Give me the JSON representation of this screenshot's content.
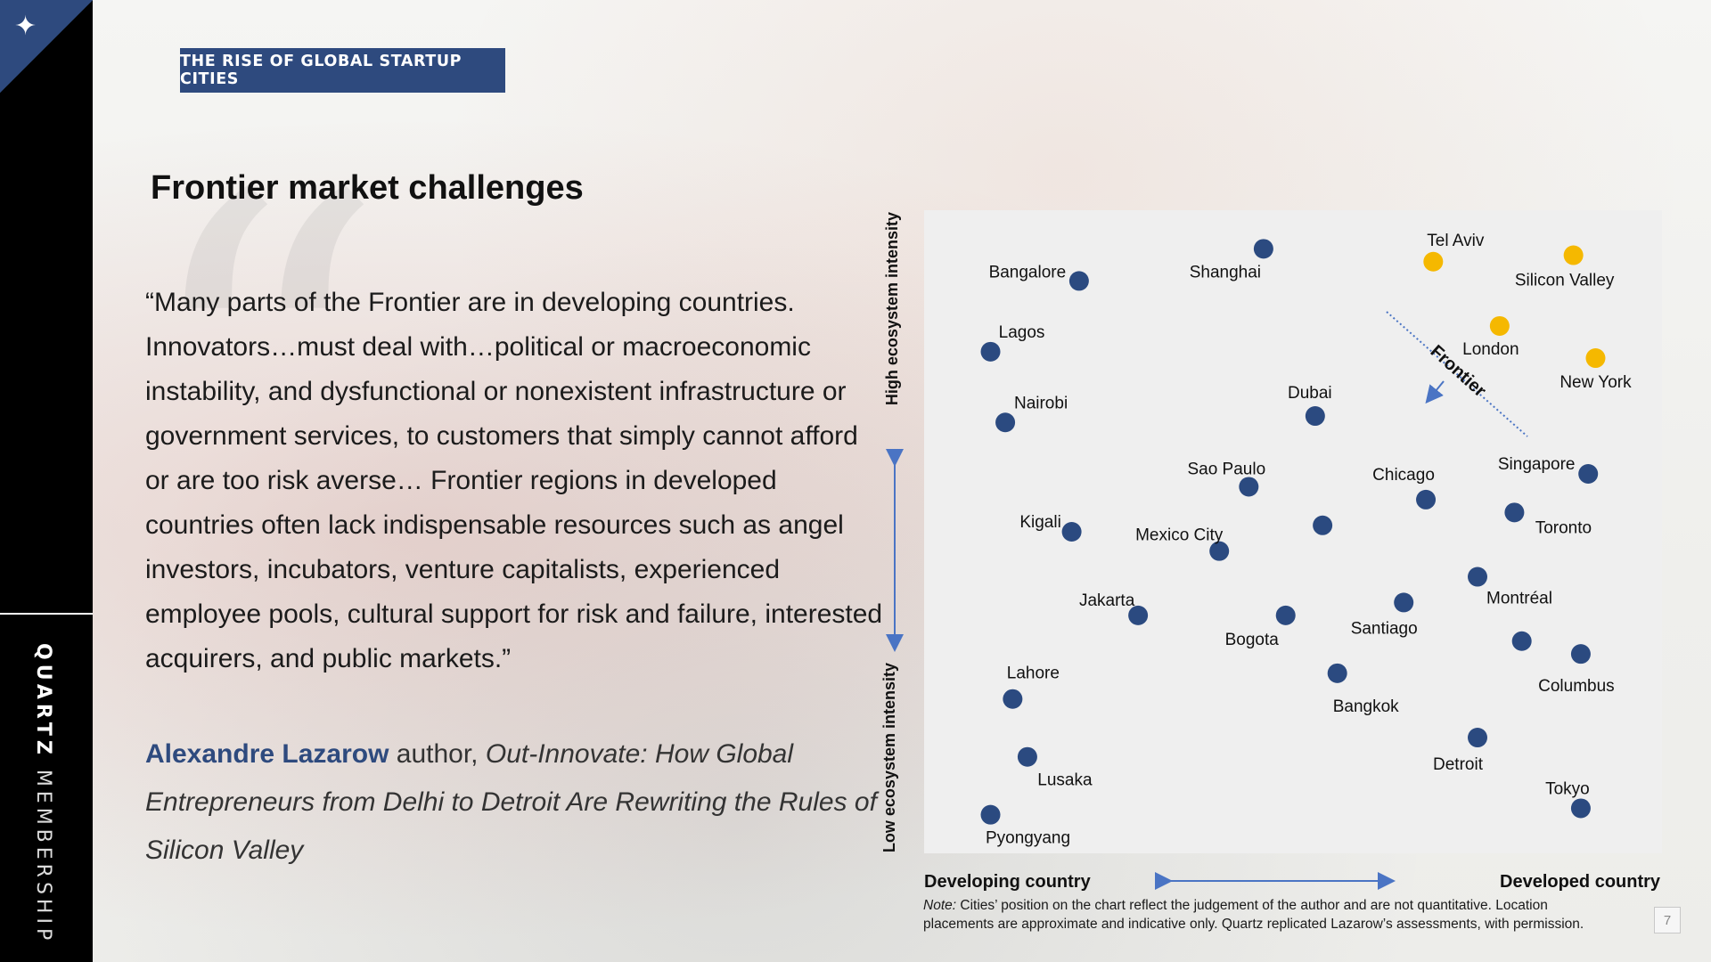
{
  "sidebar": {
    "brand_bold": "QUARTZ",
    "brand_light": " MEMBERSHIP"
  },
  "banner": {
    "label": "THE RISE OF GLOBAL STARTUP CITIES"
  },
  "heading": "Frontier market challenges",
  "quote": "“Many parts of the Frontier are in developing countries. Innovators…must deal with…political or macroeconomic instability, and dysfunctional or nonexistent infrastructure or government services, to customers that simply cannot afford or are too risk averse… Frontier regions in developed countries often lack indispensable resources such as angel investors, incubators, venture capitalists, experienced employee pools, cultural support for risk and failure, interested acquirers, and public markets.”",
  "attribution": {
    "name": "Alexandre Lazarow",
    "role": " author, ",
    "book_title": "Out-Innovate: How Global Entrepreneurs from Delhi to Detroit Are Rewriting the Rules of Silicon Valley"
  },
  "chart_data": {
    "type": "scatter",
    "y_high_label": "High ecosystem intensity",
    "y_low_label": "Low  ecosystem intensity",
    "x_left_label": "Developing country",
    "x_right_label": "Developed country",
    "frontier_label": "Frontier",
    "colors": {
      "blue": "#2b4a80",
      "yellow": "#f5b800",
      "arrow": "#4a74c4"
    },
    "points": [
      {
        "name": "Bangalore",
        "x": 0.21,
        "y": 0.89,
        "color": "blue"
      },
      {
        "name": "Shanghai",
        "x": 0.46,
        "y": 0.94,
        "color": "blue"
      },
      {
        "name": "Tel Aviv",
        "x": 0.69,
        "y": 0.92,
        "color": "yellow"
      },
      {
        "name": "Silicon Valley",
        "x": 0.88,
        "y": 0.93,
        "color": "yellow"
      },
      {
        "name": "Lagos",
        "x": 0.09,
        "y": 0.78,
        "color": "blue"
      },
      {
        "name": "London",
        "x": 0.78,
        "y": 0.82,
        "color": "yellow"
      },
      {
        "name": "New York",
        "x": 0.91,
        "y": 0.77,
        "color": "yellow"
      },
      {
        "name": "Nairobi",
        "x": 0.11,
        "y": 0.67,
        "color": "blue"
      },
      {
        "name": "Dubai",
        "x": 0.53,
        "y": 0.68,
        "color": "blue"
      },
      {
        "name": "Sao Paulo",
        "x": 0.44,
        "y": 0.57,
        "color": "blue"
      },
      {
        "name": "Chicago",
        "x": 0.68,
        "y": 0.55,
        "color": "blue"
      },
      {
        "name": "Singapore",
        "x": 0.9,
        "y": 0.59,
        "color": "blue"
      },
      {
        "name": "Kigali",
        "x": 0.2,
        "y": 0.5,
        "color": "blue"
      },
      {
        "name": "Mexico City",
        "x": 0.4,
        "y": 0.47,
        "color": "blue"
      },
      {
        "name": "",
        "x": 0.54,
        "y": 0.51,
        "color": "blue"
      },
      {
        "name": "Toronto",
        "x": 0.8,
        "y": 0.53,
        "color": "blue"
      },
      {
        "name": "Montréal",
        "x": 0.75,
        "y": 0.43,
        "color": "blue"
      },
      {
        "name": "Jakarta",
        "x": 0.29,
        "y": 0.37,
        "color": "blue"
      },
      {
        "name": "Bogota",
        "x": 0.49,
        "y": 0.37,
        "color": "blue"
      },
      {
        "name": "Santiago",
        "x": 0.65,
        "y": 0.39,
        "color": "blue"
      },
      {
        "name": "",
        "x": 0.81,
        "y": 0.33,
        "color": "blue"
      },
      {
        "name": "Columbus",
        "x": 0.89,
        "y": 0.31,
        "color": "blue"
      },
      {
        "name": "Bangkok",
        "x": 0.56,
        "y": 0.28,
        "color": "blue"
      },
      {
        "name": "Lahore",
        "x": 0.12,
        "y": 0.24,
        "color": "blue"
      },
      {
        "name": "Detroit",
        "x": 0.75,
        "y": 0.18,
        "color": "blue"
      },
      {
        "name": "Lusaka",
        "x": 0.14,
        "y": 0.15,
        "color": "blue"
      },
      {
        "name": "Tokyo",
        "x": 0.89,
        "y": 0.07,
        "color": "blue"
      },
      {
        "name": "Pyongyang",
        "x": 0.09,
        "y": 0.06,
        "color": "blue"
      }
    ]
  },
  "note": {
    "label": "Note:",
    "text": " Cities’ position on the chart reflect the judgement of the author and are not quantitative. Location placements are approximate and indicative only.  Quartz replicated Lazarow’s assessments, with permission."
  },
  "page_number": "7"
}
